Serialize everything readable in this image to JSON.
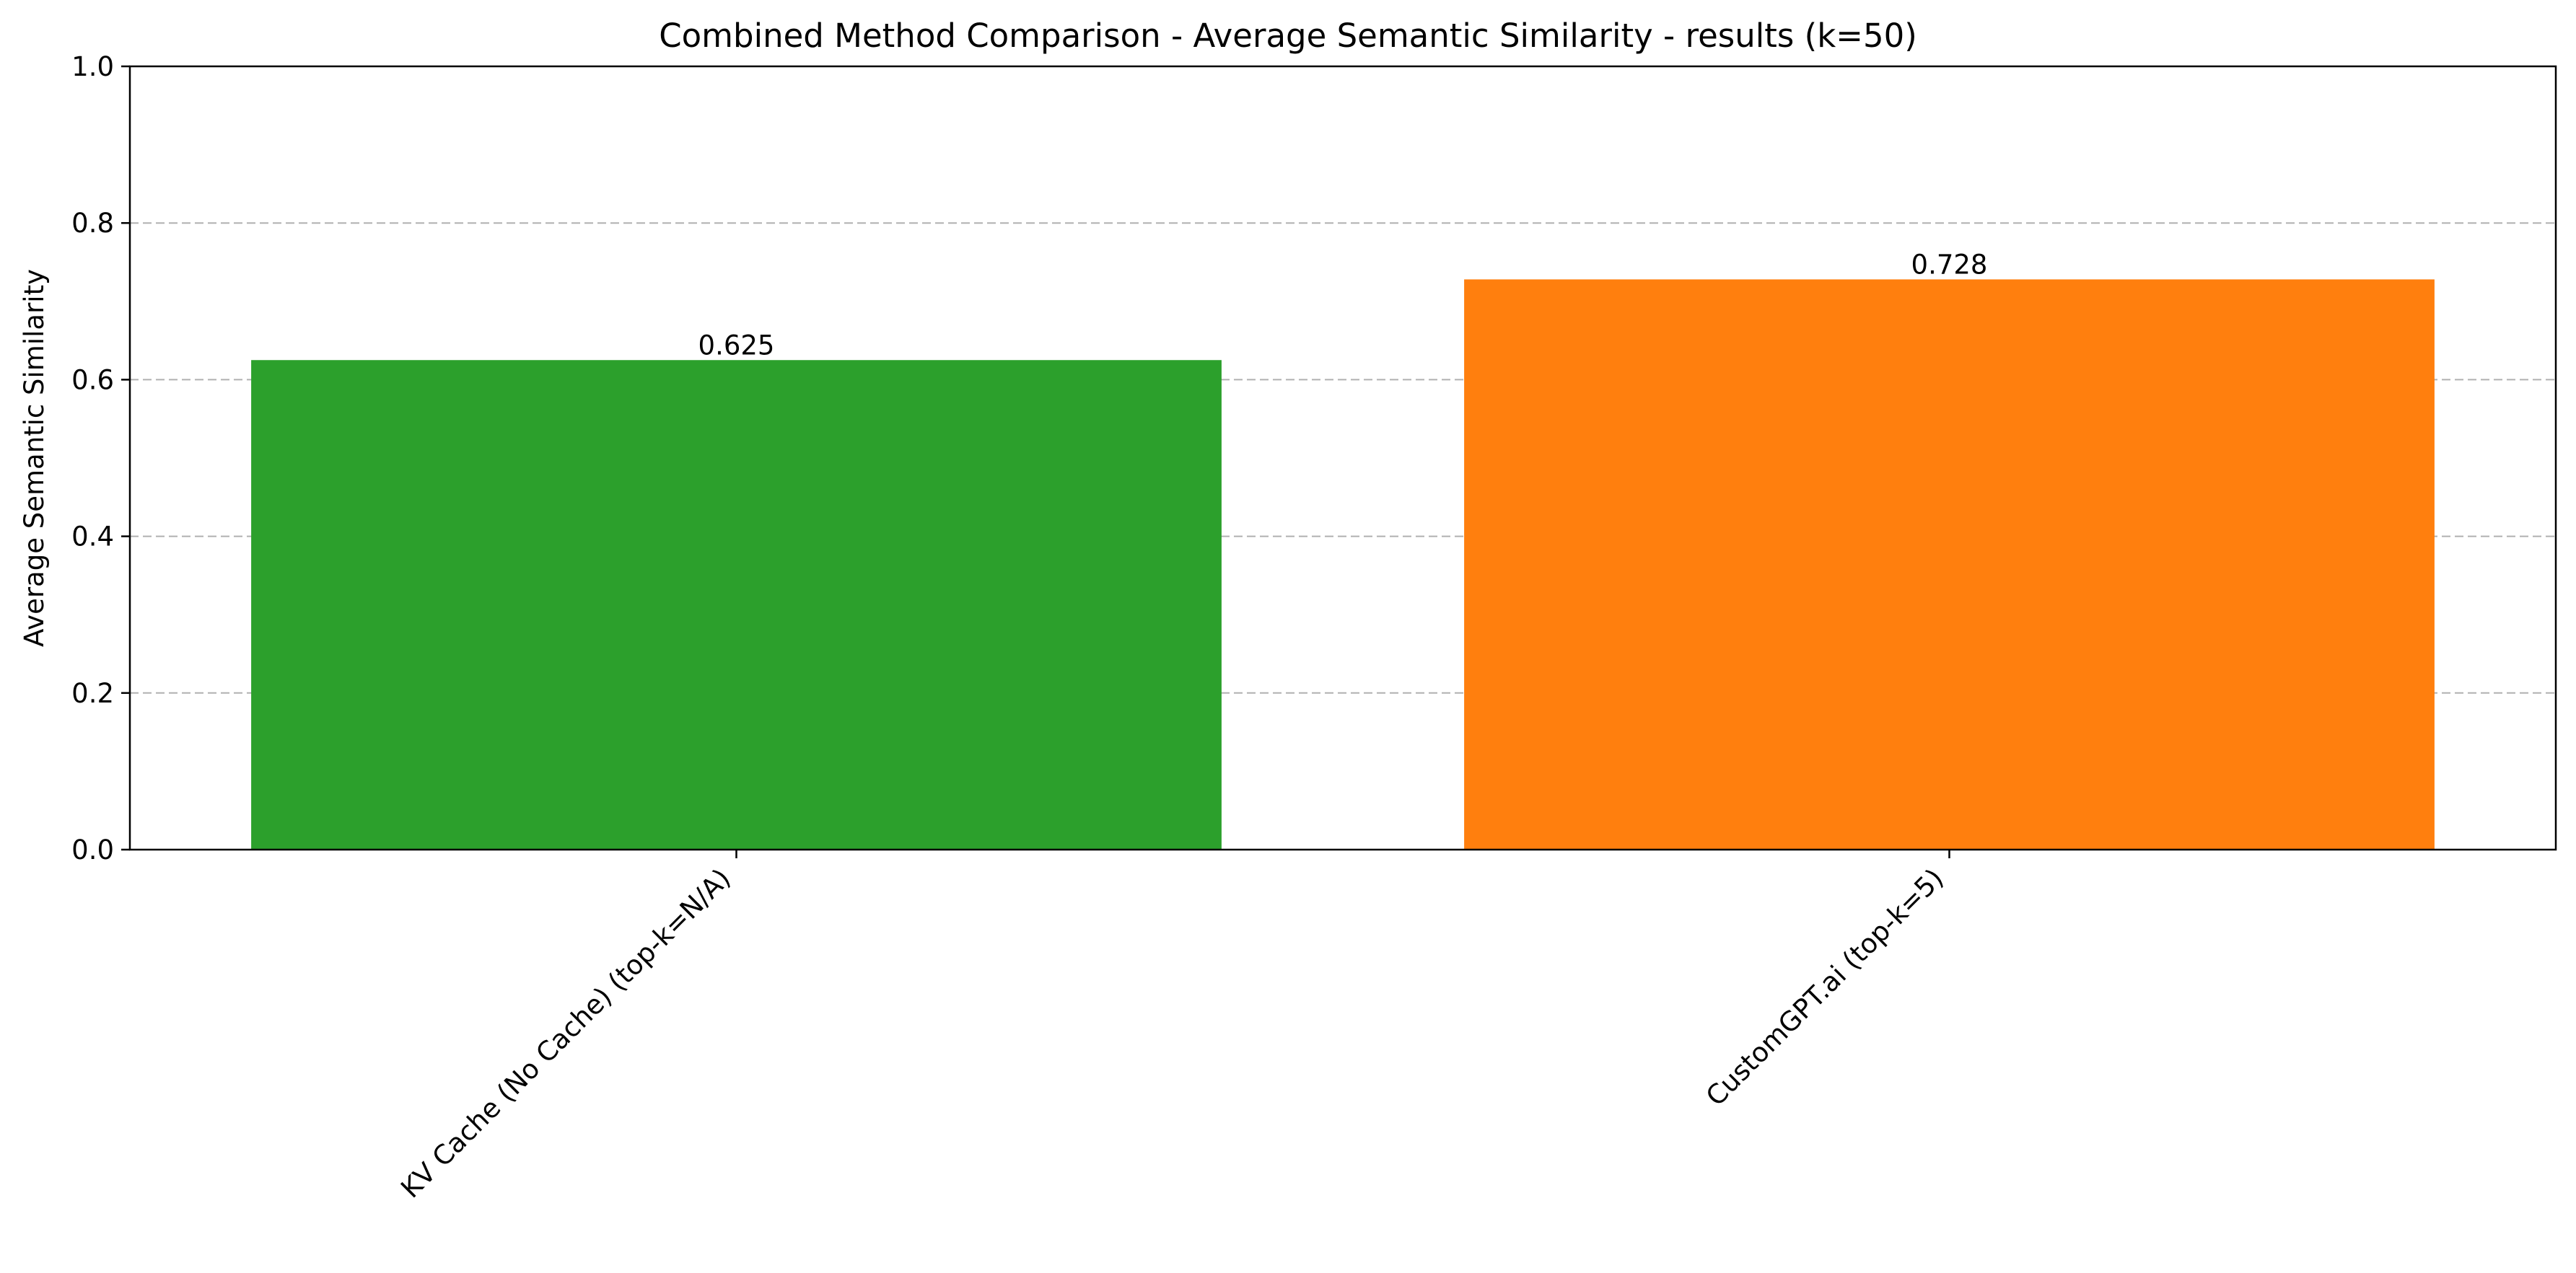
{
  "chart_data": {
    "type": "bar",
    "title": "Combined Method Comparison - Average Semantic Similarity - results (k=50)",
    "xlabel": "",
    "ylabel": "Average Semantic Similarity",
    "ylim": [
      0,
      1.0
    ],
    "yticks": [
      "0.0",
      "0.2",
      "0.4",
      "0.6",
      "0.8",
      "1.0"
    ],
    "grid": "y-dashed",
    "legend": "none",
    "categories": [
      "KV Cache (No Cache) (top-k=N/A)",
      "CustomGPT.ai (top-k=5)"
    ],
    "values": [
      0.625,
      0.728
    ],
    "value_labels": [
      "0.625",
      "0.728"
    ],
    "colors": [
      "#2ca02c",
      "#ff7f0e"
    ]
  }
}
